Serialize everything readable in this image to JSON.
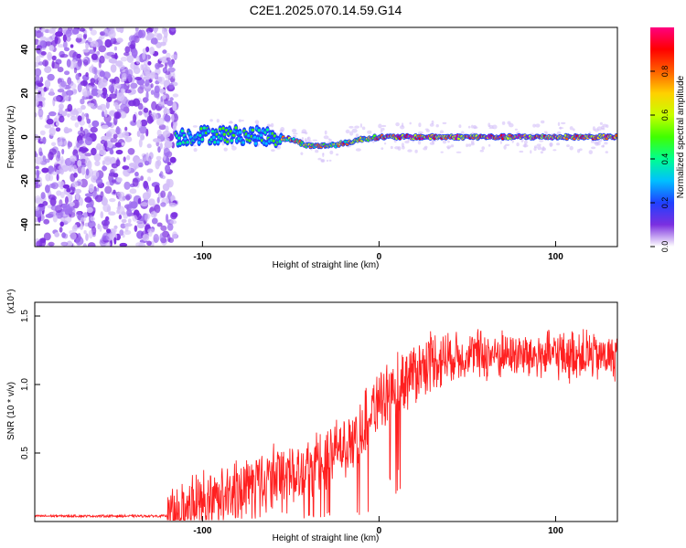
{
  "title": "C2E1.2025.070.14.59.G14",
  "chart_data": [
    {
      "type": "heatmap",
      "xlabel": "Height of straight line (km)",
      "ylabel": "Frequency (Hz)",
      "xlim": [
        -195,
        135
      ],
      "ylim": [
        -50,
        50
      ],
      "xticks": [
        -100,
        0,
        100
      ],
      "yticks": [
        -40,
        -20,
        0,
        20,
        40
      ],
      "colorbar": {
        "label": "Normalized spectral amplitude",
        "range": [
          0,
          1
        ],
        "ticks": [
          "0.0",
          "0.2",
          "0.4",
          "0.6",
          "0.8"
        ],
        "colors": [
          "#ffffff",
          "#7b2fe0",
          "#2040ff",
          "#00c0ff",
          "#00ff90",
          "#40ff00",
          "#c8ff00",
          "#ffd000",
          "#ff6000",
          "#ff0000",
          "#ff0080"
        ]
      },
      "ridge": {
        "x": [
          -115,
          -100,
          -80,
          -60,
          -50,
          -40,
          -30,
          -20,
          -10,
          0,
          20,
          50,
          80,
          100,
          135
        ],
        "frequency": [
          0,
          1,
          1,
          0,
          -1,
          -4,
          -4,
          -3,
          -1,
          0,
          0,
          0,
          0,
          0,
          0
        ]
      },
      "noise_region_x": [
        -195,
        -115
      ]
    },
    {
      "type": "line",
      "xlabel": "Height of straight line (km)",
      "ylabel": "SNR (10 * v/v)",
      "ylabel_multiplier": "(x10⁴)",
      "xlim": [
        -195,
        135
      ],
      "ylim": [
        0,
        1.6
      ],
      "xticks": [
        -100,
        0,
        100
      ],
      "yticks": [
        "0.5",
        "1.0",
        "1.5"
      ],
      "series": [
        {
          "color": "#ff2020",
          "envelope_x": [
            -195,
            -120,
            -110,
            -100,
            -90,
            -80,
            -70,
            -60,
            -50,
            -40,
            -30,
            -20,
            -10,
            0,
            10,
            20,
            30,
            50,
            70,
            90,
            110,
            135
          ],
          "envelope_y": [
            0.04,
            0.04,
            0.08,
            0.16,
            0.2,
            0.24,
            0.27,
            0.32,
            0.38,
            0.4,
            0.45,
            0.55,
            0.68,
            0.9,
            1.0,
            1.1,
            1.18,
            1.22,
            1.22,
            1.21,
            1.22,
            1.2
          ]
        }
      ]
    }
  ]
}
